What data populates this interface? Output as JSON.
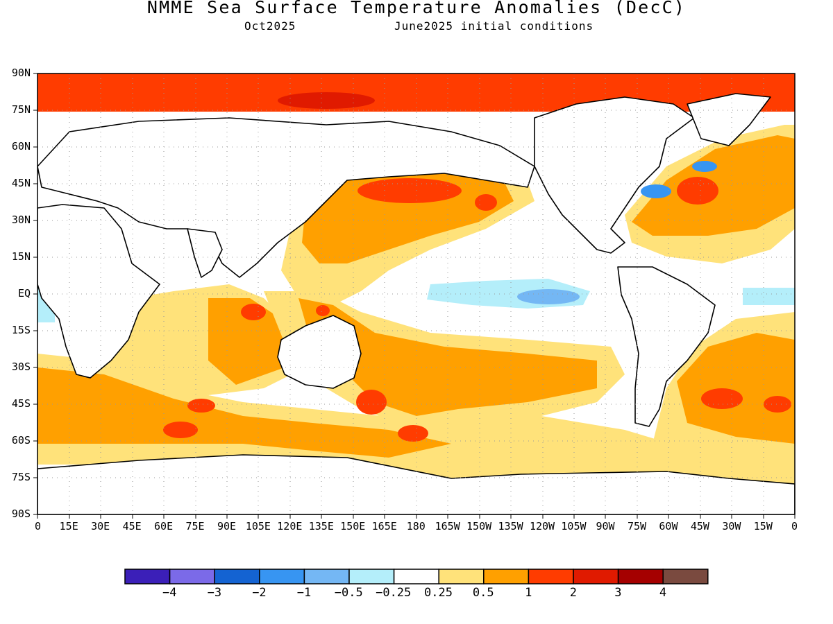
{
  "header": {
    "title": "NMME Sea Surface Temperature Anomalies (DecC)",
    "valid_month": "Oct2025",
    "init": "June2025 initial conditions"
  },
  "map": {
    "lat_labels": [
      "90N",
      "75N",
      "60N",
      "45N",
      "30N",
      "15N",
      "EQ",
      "15S",
      "30S",
      "45S",
      "60S",
      "75S",
      "90S"
    ],
    "lon_labels": [
      "0",
      "15E",
      "30E",
      "45E",
      "60E",
      "75E",
      "90E",
      "105E",
      "120E",
      "135E",
      "150E",
      "165E",
      "180",
      "165W",
      "150W",
      "135W",
      "120W",
      "105W",
      "90W",
      "75W",
      "60W",
      "45W",
      "30W",
      "15W",
      "0"
    ]
  },
  "colorbar": {
    "colors": [
      "#3b1fb8",
      "#7b6ae8",
      "#1463d2",
      "#3795f2",
      "#74b7f4",
      "#b4eefa",
      "#ffffff",
      "#ffe27a",
      "#ffa000",
      "#ff3c00",
      "#e01a00",
      "#a50000",
      "#7a4a3f"
    ],
    "labels": [
      "−4",
      "−3",
      "−2",
      "−1",
      "−0.5",
      "−0.25",
      "0.25",
      "0.5",
      "1",
      "2",
      "3",
      "4"
    ]
  }
}
